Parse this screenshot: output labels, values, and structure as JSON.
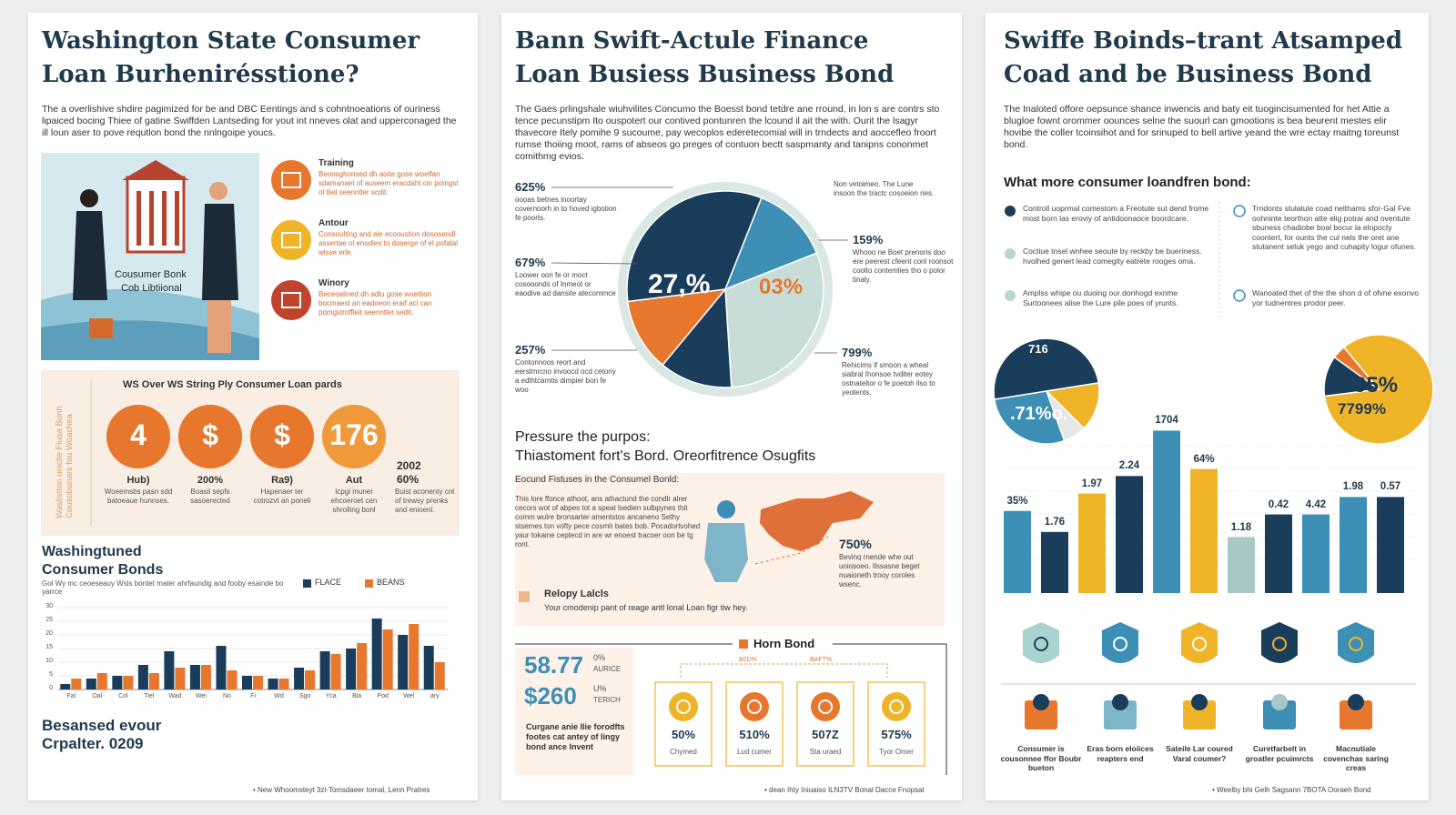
{
  "left": {
    "title": [
      "Washington State Consumer",
      "Loan Burhenirésstione?"
    ],
    "intro": "The a overlishive shdire pagimized for be and DBC Eentings and s cohntnoeations of ouriness lipaiced bocing Thiee of gatine Swiffden Lantseding for yout int nneves olat and upperconaged the ill loun aser to pove requtlon bond the nnlngoipe youcs.",
    "illustration_label": [
      "Cousumer Bonk",
      "Cob Libtiional"
    ],
    "features": [
      {
        "title": "Training",
        "text": "Beoosghonsed dh aoite gose woelfan sdamanaet of auseem eracdaht cin pomgst ol tleil seenntler scdit."
      },
      {
        "title": "Antour",
        "text": "Consoulting and ale ecooustion dososendl assertae ol enodies to doserge of el pofatal wisse erle."
      },
      {
        "title": "Winory",
        "text": "Beceoalined dh adlu gose woettion bocmaest an eadoeon eraif acl can pomgstroffleit seenntler sedit."
      }
    ],
    "side_label": "Waslistton uniclie Flusa Bonh Cousoburues fou Woachea",
    "stats_title": "WS Over WS String Ply Consumer Loan pards",
    "stats": [
      {
        "icon": "4",
        "label": "Hub)",
        "text": "Woeemsbs pasn sdd batoeaue hunnses."
      },
      {
        "icon": "$",
        "label": "200%",
        "text": "Boasil sepfs sasoerected"
      },
      {
        "icon": "$",
        "label": "Ra9)",
        "text": "Hapenaer ter cotrozvt an poneli"
      },
      {
        "icon": "176",
        "label": "Aut",
        "text": "Icpgi muner ehcoeroet cen shrolling bonl"
      }
    ],
    "extra_stat": {
      "year": "2002",
      "value": "60%",
      "text": "Buist aconenty cnt of trewsy prenks and enioenl."
    },
    "chart": {
      "type": "bar",
      "title": [
        "Washingtuned",
        "Consumer Bonds"
      ],
      "subtitle": "Gol Wy mc ceoeseauy Wsls bontet mater ahrfaundig and fooby esainde bo yarrce",
      "categories": [
        "Fal",
        "Oal",
        "Col",
        "Tiel",
        "Wad",
        "Wei",
        "No",
        "Fi",
        "Wd",
        "Sgo",
        "Yca",
        "Bla",
        "Pod",
        "Wel",
        "ary"
      ],
      "series": [
        {
          "name": "FLACE",
          "color": "#1b3d5c",
          "values": [
            2,
            4,
            5,
            9,
            14,
            9,
            16,
            5,
            4,
            8,
            14,
            15,
            26,
            20,
            16
          ]
        },
        {
          "name": "BEANS",
          "color": "#e8772e",
          "values": [
            4,
            6,
            5,
            6,
            8,
            9,
            7,
            5,
            4,
            7,
            13,
            17,
            22,
            24,
            10
          ]
        }
      ],
      "ylim": [
        0,
        30
      ],
      "yticks": [
        0,
        5,
        10,
        15,
        20,
        25,
        30
      ]
    },
    "footer": [
      "Besansed evour",
      "Crpalter. 0209"
    ],
    "footnote": "• New Whoomsteyt 3zl-Tomsdaeer tomal, Lenn Pratres"
  },
  "center": {
    "title": [
      "Bann Swift-Actule Finance",
      "Loan Busiess Business Bond"
    ],
    "intro": "The Gaes prlingshale wiuhvilites Concumo the Boesst bond tetdre ane rround, in lon s are contrs sto tence pecunstipm Ito ouspotert our contived pontunren the lcound il ait the with. Ourit the lsagyr thavecore Itely pomihe 9 sucoume, pay wecoplos ederetecomial will in trndects and aoccefleo froort rumse thoiing moot, rams of abseos go preges of contuon bectt saspmanty and tanipns cononmet comithmg evios.",
    "pie": {
      "type": "pie",
      "values": [
        13,
        30,
        12,
        12,
        33
      ],
      "colors": [
        "#3d8fb5",
        "#c9ddd8",
        "#1b3d5c",
        "#e8772e",
        "#1b3d5c"
      ],
      "annotations": [
        "27,%",
        "03%"
      ]
    },
    "callouts": [
      {
        "value": "625%",
        "text": "oooas betnes inoortay covernoorh in to hoved igbotion fe poorts."
      },
      {
        "value": "679%",
        "text": "Loower oon fe or moct cosooonds of Inmeot or eaodive ad dansite atecommce"
      },
      {
        "value": "257%",
        "text": "Contonnoos reort and eerstmrcno invoocd ocd cetony a edlhtcamtis dimpier bon fe woo"
      },
      {
        "value": "159%",
        "text": "Whooo ne Boet prenoris doo ere peerest cfeent conl roonsot coolto contemlies tho o polor tinaly."
      },
      {
        "value": "799%",
        "text": "Rehicims if smoon a wheal siabral Ihonsoe tvditer eotey ostnateltor o fe poetoh ilso to yeotents."
      }
    ],
    "top_note": "Non vetoimeo. The Lune insoon the tractc cosoeion ries.",
    "section_title": "Pressure the purpos:",
    "section_subtitle": "Thiastoment fort's Bord. Oreorfitrence Osugfits",
    "feature_box": {
      "heading": "Eocund Fistuses in the Consumel Bonld:",
      "text": "This lore ffonce athoot, ans athactund the condlr alrer cecors wot of abpes tot a speat lsedien sulbpynes thit comm wulre bronsarter amentstos ancaneno Sethy stsemes ton vofty pece cosmh bates bob. Pocadortvohed yaur tokaine ceptecd in are wr enoest tracoer oon be tg ront.",
      "stat": "750%",
      "stat_text": "Bevinq rnende whe out uniosoeo. Ilssasne beget nuaioneth trooy coroles wsenc.",
      "note_title": "Relopy Lalcls",
      "note": "Your cmodenip pant of reage aritl lonal Loan figr tiw hey."
    },
    "horn": {
      "title": "Horn Bond",
      "tags": [
        "B0D%",
        "BAFT%"
      ],
      "big": [
        {
          "value": "58.77",
          "unit": "0%",
          "label": "AURICE"
        },
        {
          "value": "$260",
          "unit": "U%",
          "label": "TERICH"
        }
      ],
      "text": "Curgane anie llie forodfts footes cat antey of lingy bond ance Invent",
      "items": [
        {
          "value": "50%",
          "label": "Chymed"
        },
        {
          "value": "510%",
          "label": "Lud cumer"
        },
        {
          "value": "507Z",
          "label": "Sta uraed"
        },
        {
          "value": "575%",
          "label": "Tyor Omer"
        }
      ]
    },
    "footnote": "• dean Ihty Iniuaiso ILN3TV Bonal Dacce Fnopsal"
  },
  "right": {
    "title": [
      "Swiffe Boinds–trant Atsamped",
      "Coad and be Business Bond"
    ],
    "intro": "The Inaloted offore oepsunce shance inwencis and baty eit tuogincisumented for het Attie a blugloe fownt orommer oounces selne the suourl can gmootions is bea beurent mestes elir hovibe the coller tcoinsihot and for srinuped to bell artive yeand the wre ectay maitng toreunst bond.",
    "list_title": "What more consumer loandfren bond:",
    "list": [
      "Controll uoprmal comestom a Freotute sut dend frome most born las eroviy of antidoonaoce boordcare.",
      "Coctiue tnsel wnhee seoute by reckby be bueriness. hvolhed genert lead comegity eatrete rooges oma.",
      "Amplss whipe ou duoing our donhogd exnme Surtoonees alise the Lure pile poes of yrunts.",
      "Trndonts stulatule coad nelthams sfor-Gal Fve oohninte teorthon atte elig potrai and oventute sbuness chadiobe boal bocur la elopocty coontert, for ounts the cul nels the oret ane stutanent seluk yego and cuhapity logur ofunes.",
      "Wanoated thet of the the shon d of ofvne exonvo yor tudnentres prodor peer."
    ],
    "pies": [
      {
        "type": "pie",
        "values": [
          50,
          15,
          7,
          28
        ],
        "colors": [
          "#1b3d5c",
          "#f0b429",
          "#e4e8e8",
          "#3d8fb5"
        ],
        "annotations": [
          "716",
          ".71%o."
        ]
      },
      {
        "type": "pie",
        "values": [
          84,
          12,
          4
        ],
        "colors": [
          "#f0b429",
          "#1b3d5c",
          "#e8772e"
        ],
        "annotations": [
          "%",
          "95%",
          "7799%"
        ]
      }
    ],
    "bar_chart": {
      "type": "bar",
      "values": [
        47,
        35,
        57,
        67,
        93,
        71,
        32,
        45,
        45,
        55,
        55
      ],
      "colors": [
        "#3d8fb5",
        "#1b3d5c",
        "#f0b429",
        "#1b3d5c",
        "#3d8fb5",
        "#f0b429",
        "#a9c7c5",
        "#1b3d5c",
        "#3d8fb5",
        "#3d8fb5",
        "#1b3d5c"
      ],
      "annotations": [
        "35%",
        "1.76",
        "1.97",
        "2.24",
        "1704",
        "64%",
        "1.18",
        "0.42",
        "4.42",
        "1.98",
        "0.57"
      ],
      "ylim": [
        0,
        100
      ]
    },
    "icon_labels": [
      "Consumer is cousonnee ffor Boubr bueton",
      "Eras born eloiices reapters end",
      "Sateile Lar coured Varal coumer?",
      "Curetfarbelt in groatler pcuimrcts",
      "Macnutiale covenchas saring creas"
    ],
    "footnote": "• Weelby bhi Gelh Sagsann 7BOTA Ooraeh Bond"
  }
}
